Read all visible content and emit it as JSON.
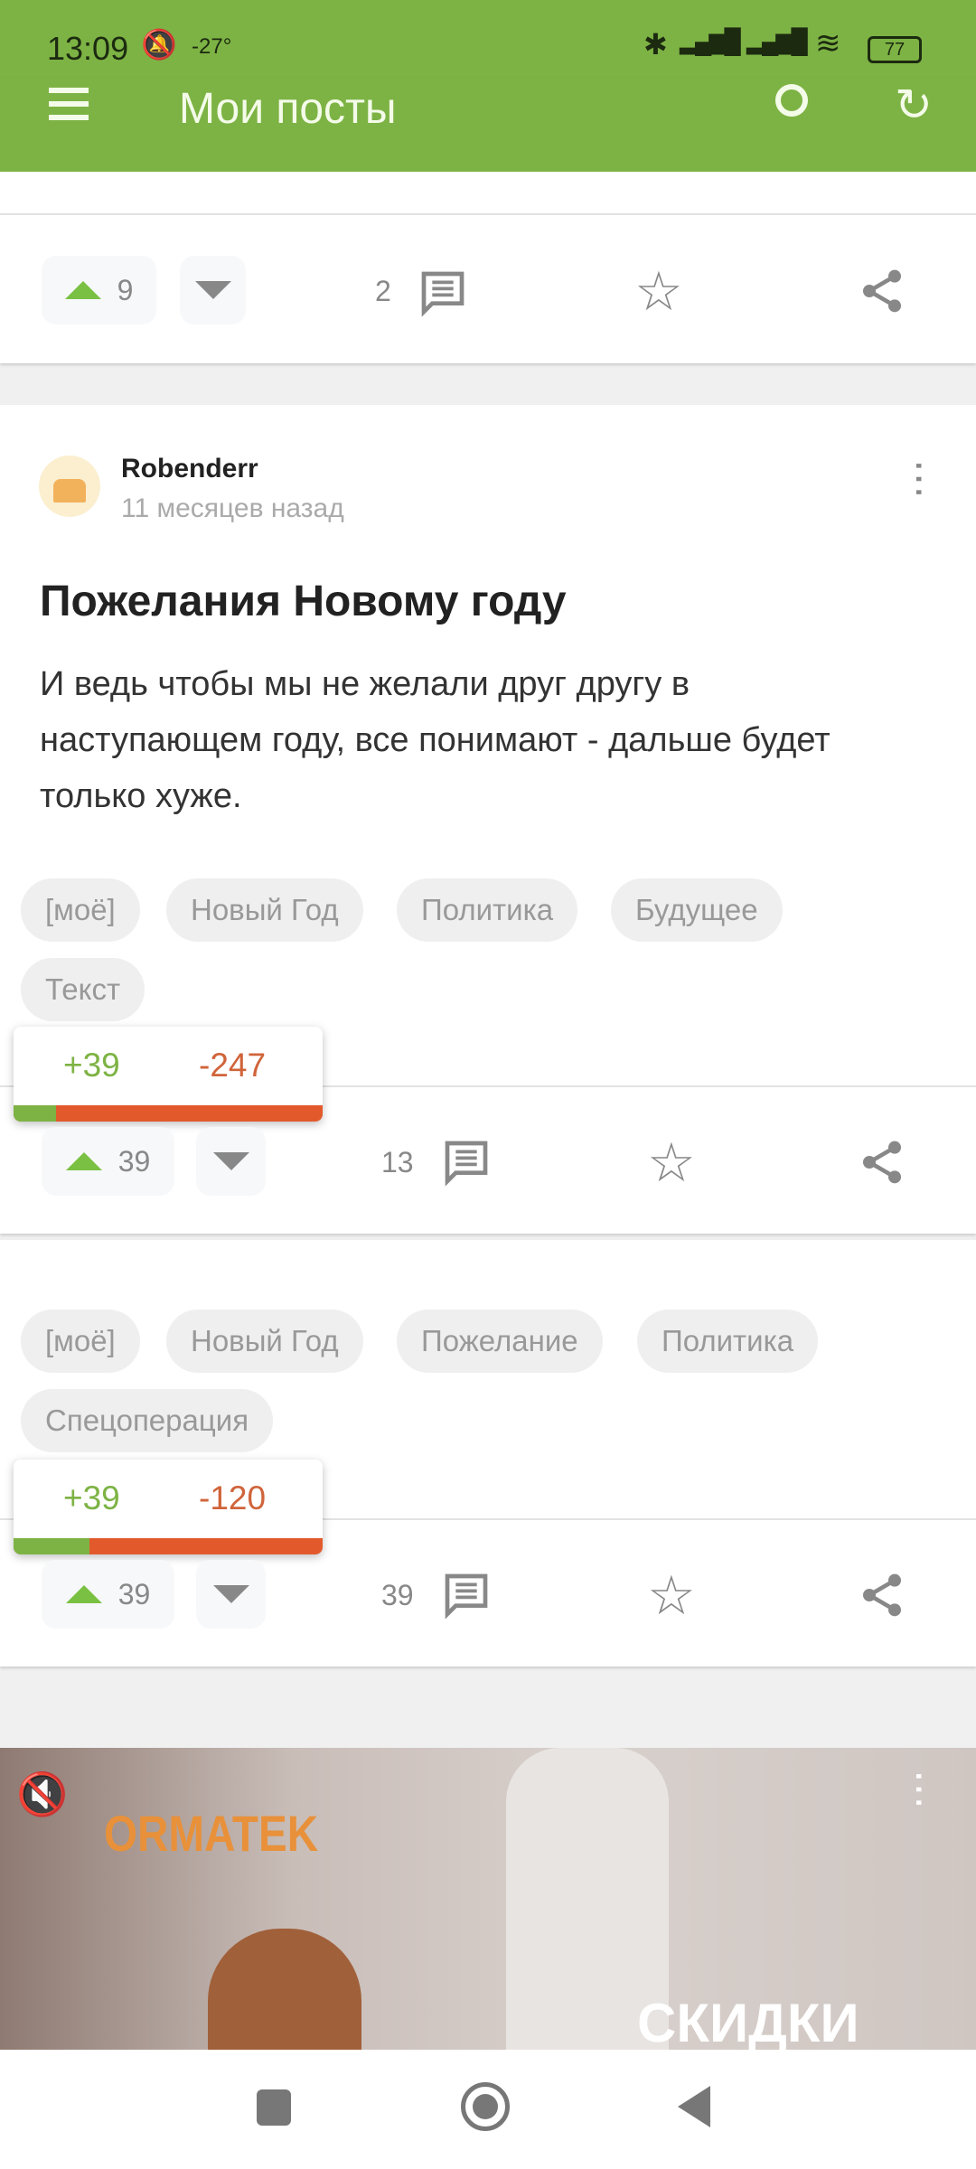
{
  "status_bar": {
    "time": "13:09",
    "temperature": "-27°",
    "battery": "77"
  },
  "app_bar": {
    "title": "Мои посты",
    "menu_icon": "hamburger-icon",
    "search_icon": "search-icon",
    "refresh_icon": "refresh-icon"
  },
  "posts": [
    {
      "upvotes": "9",
      "comments": "2"
    },
    {
      "author": "Robenderr",
      "time": "11 месяцев назад",
      "title": "Пожелания Новому году",
      "body": "И ведь чтобы мы не желали друг другу в наступающем году, все понимают - дальше будет только хуже.",
      "tags": [
        "[моё]",
        "Новый Год",
        "Политика",
        "Будущее",
        "Текст"
      ],
      "rating": {
        "plus": "+39",
        "minus": "-247",
        "plus_fraction": 0.136
      },
      "upvotes": "39",
      "comments": "13"
    },
    {
      "tags": [
        "[моё]",
        "Новый Год",
        "Пожелание",
        "Политика",
        "Спецоперация"
      ],
      "rating": {
        "plus": "+39",
        "minus": "-120",
        "plus_fraction": 0.245
      },
      "upvotes": "39",
      "comments": "39"
    }
  ],
  "ad": {
    "brand": "ORMATEK",
    "caption": "СКИДКИ"
  },
  "colors": {
    "accent": "#7db344",
    "negative": "#e25a2c"
  }
}
